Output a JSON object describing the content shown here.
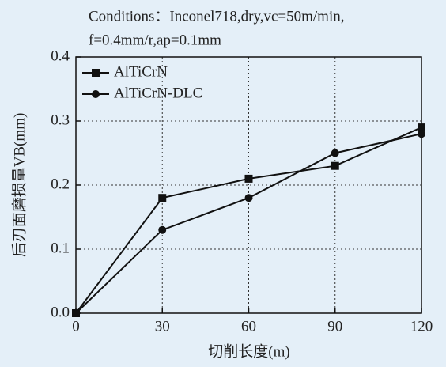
{
  "chart_data": {
    "type": "line",
    "annotations": [
      "Conditions：Inconel718,dry,vc=50m/min,",
      "f=0.4mm/r,ap=0.1mm"
    ],
    "x_label": "切削长度(m)",
    "y_label": "后刃面磨损量VB(mm)",
    "x": [
      0,
      30,
      60,
      90,
      120
    ],
    "series": [
      {
        "name": "AlTiCrN",
        "color": "#111111",
        "marker": "square",
        "values": [
          0,
          0.18,
          0.21,
          0.23,
          0.29
        ]
      },
      {
        "name": "AlTiCrN-DLC",
        "color": "#111111",
        "marker": "circle",
        "values": [
          0,
          0.13,
          0.18,
          0.25,
          0.28
        ]
      }
    ],
    "xlim": [
      0,
      120
    ],
    "xticks": [
      0,
      30,
      60,
      90,
      120
    ],
    "ylim": [
      0,
      0.4
    ],
    "yticks": [
      {
        "value": 0,
        "label": "0.0"
      },
      0.1,
      0.2,
      0.3,
      0.4
    ],
    "grid": true,
    "legend": "upper left"
  }
}
